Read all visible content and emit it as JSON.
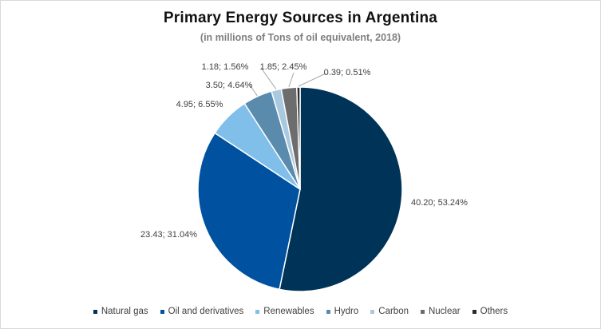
{
  "chart_data": {
    "type": "pie",
    "title": "Primary Energy Sources in Argentina",
    "subtitle": "(in millions of Tons of oil equivalent, 2018)",
    "slices": [
      {
        "name": "Natural gas",
        "value": 40.2,
        "label": "40.20; 53.24%",
        "color": "#003358"
      },
      {
        "name": "Oil and derivatives",
        "value": 23.43,
        "label": "23.43; 31.04%",
        "color": "#0052a0"
      },
      {
        "name": "Renewables",
        "value": 4.95,
        "label": "4.95; 6.55%",
        "color": "#7fbfe9"
      },
      {
        "name": "Hydro",
        "value": 3.5,
        "label": "3.50; 4.64%",
        "color": "#5a8bad"
      },
      {
        "name": "Carbon",
        "value": 1.18,
        "label": "1.18; 1.56%",
        "color": "#a9c9e0"
      },
      {
        "name": "Nuclear",
        "value": 1.85,
        "label": "1.85; 2.45%",
        "color": "#6d6d6d"
      },
      {
        "name": "Others",
        "value": 0.39,
        "label": "0.39; 0.51%",
        "color": "#2b2b2b"
      }
    ],
    "legend_position": "bottom"
  }
}
